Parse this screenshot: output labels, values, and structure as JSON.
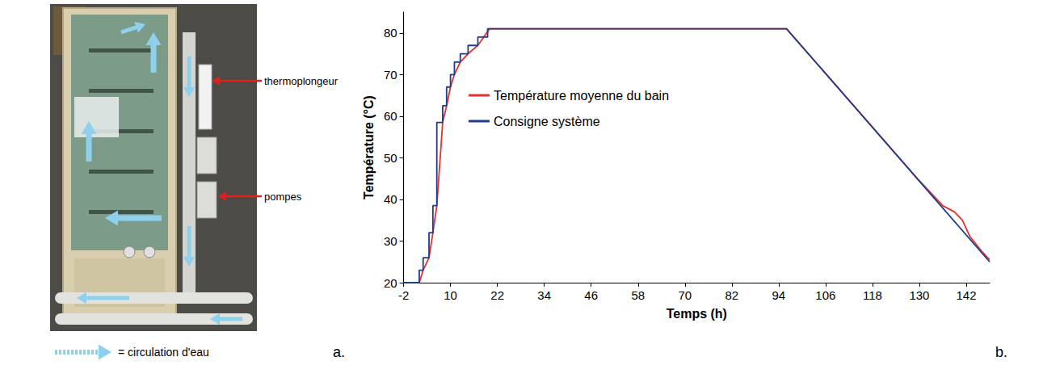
{
  "chart_data": {
    "type": "line",
    "panel_label": "b.",
    "x_label": "Temps (h)",
    "y_label": "Température (°C)",
    "xlim": [
      -2,
      148
    ],
    "xticks": [
      -2,
      10,
      22,
      34,
      46,
      58,
      70,
      82,
      94,
      106,
      118,
      130,
      142
    ],
    "ylim": [
      20,
      85
    ],
    "yticks": [
      20,
      30,
      40,
      50,
      60,
      70,
      80
    ],
    "grid": false,
    "legend": "left",
    "series": [
      {
        "name": "Température moyenne du bain",
        "color": "#e8312a",
        "x": [
          -2,
          2,
          3,
          4.5,
          5.5,
          6.5,
          8,
          9,
          10,
          11,
          12.5,
          14.5,
          17,
          20,
          96,
          130,
          136,
          139,
          141,
          143,
          146,
          148
        ],
        "values": [
          20,
          20,
          23,
          26,
          32,
          38.5,
          58.5,
          62.5,
          67,
          70,
          73,
          75,
          77,
          81,
          81,
          44.5,
          38.5,
          37,
          35,
          31,
          27.5,
          25.5
        ]
      },
      {
        "name": "Consigne système",
        "color": "#1f3c8f",
        "x": [
          -2,
          2,
          2,
          3,
          3,
          4.5,
          4.5,
          5.5,
          5.5,
          6.5,
          6.5,
          8,
          8,
          9,
          9,
          10,
          10,
          11,
          11,
          12.5,
          12.5,
          14.5,
          14.5,
          17,
          17,
          19.5,
          19.5,
          96,
          148
        ],
        "values": [
          20,
          20,
          23,
          23,
          26,
          26,
          32,
          32,
          38.5,
          38.5,
          58.5,
          58.5,
          62.5,
          62.5,
          67,
          67,
          70,
          70,
          73,
          73,
          75,
          75,
          77,
          77,
          79,
          79,
          81,
          81,
          25
        ]
      }
    ]
  },
  "photo": {
    "panel_label": "a.",
    "annotations": [
      "thermoplongeur",
      "pompes"
    ],
    "key": "= circulation d'eau"
  }
}
